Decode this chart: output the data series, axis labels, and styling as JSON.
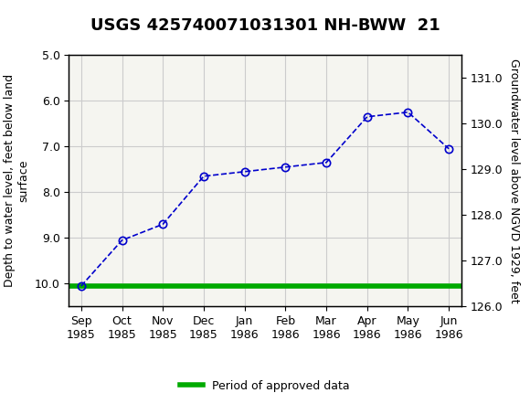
{
  "title": "USGS 425740071031301 NH-BWW  21",
  "x_labels": [
    "Sep\n1985",
    "Oct\n1985",
    "Nov\n1985",
    "Dec\n1985",
    "Jan\n1986",
    "Feb\n1986",
    "Mar\n1986",
    "Apr\n1986",
    "May\n1986",
    "Jun\n1986"
  ],
  "x_positions": [
    0,
    1,
    2,
    3,
    4,
    5,
    6,
    7,
    8,
    9
  ],
  "depth_values": [
    10.05,
    9.05,
    8.7,
    7.65,
    7.55,
    7.45,
    7.35,
    6.35,
    6.25,
    7.05
  ],
  "has_circle_marker": [
    true,
    true,
    true,
    true,
    true,
    true,
    true,
    true,
    true,
    true
  ],
  "ylim_left": [
    5.0,
    10.5
  ],
  "ylim_right": [
    126.0,
    131.5
  ],
  "ylabel_left": "Depth to water level, feet below land\nsurface",
  "ylabel_right": "Groundwater level above NGVD 1929, feet",
  "yticks_left": [
    5.0,
    6.0,
    7.0,
    8.0,
    9.0,
    10.0
  ],
  "yticks_right": [
    131.0,
    130.0,
    129.0,
    128.0,
    127.0,
    126.0
  ],
  "line_color": "#0000CC",
  "marker_color": "#0000CC",
  "green_line_y": 10.05,
  "green_color": "#00AA00",
  "legend_label": "Period of approved data",
  "background_color": "#F5F5F0",
  "grid_color": "#CCCCCC",
  "header_color": "#1A6630",
  "title_fontsize": 13,
  "axis_fontsize": 9,
  "label_fontsize": 9
}
